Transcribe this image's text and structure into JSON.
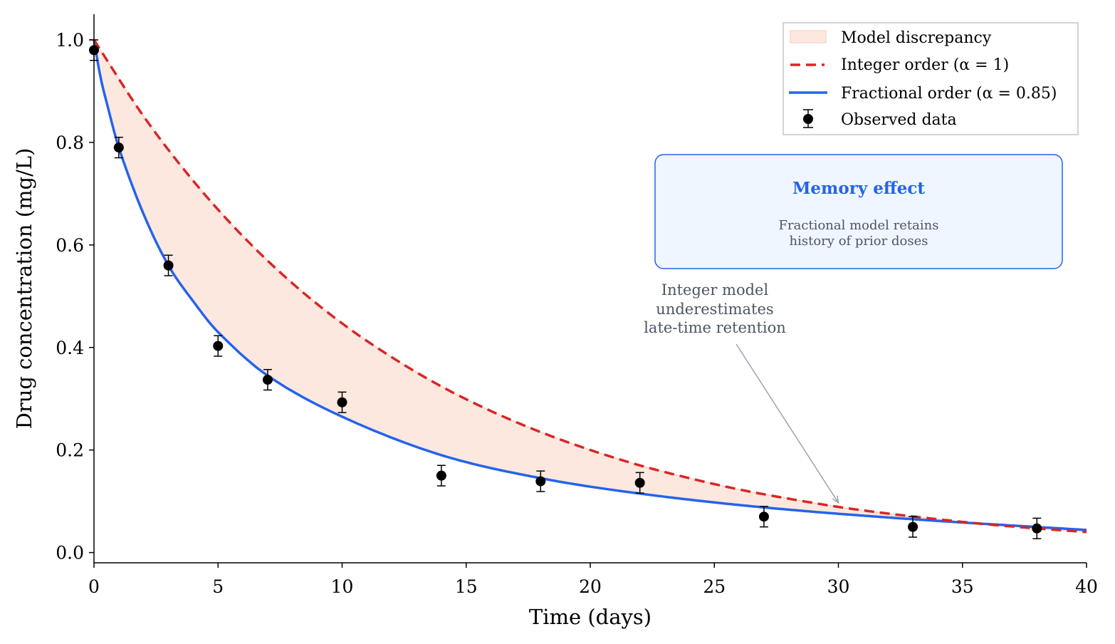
{
  "chart_data": {
    "type": "line",
    "title": "",
    "xlabel": "Time (days)",
    "ylabel": "Drug concentration (mg/L)",
    "xlim": [
      0,
      40
    ],
    "ylim": [
      -0.02,
      1.05
    ],
    "xticks": [
      0,
      5,
      10,
      15,
      20,
      25,
      30,
      35,
      40
    ],
    "xtick_labels": [
      "0",
      "5",
      "10",
      "15",
      "20",
      "25",
      "30",
      "35",
      "40"
    ],
    "yticks": [
      0.0,
      0.2,
      0.4,
      0.6,
      0.8,
      1.0
    ],
    "ytick_labels": [
      "0.0",
      "0.2",
      "0.4",
      "0.6",
      "0.8",
      "1.0"
    ],
    "grid": false,
    "legend_position": "top-right",
    "series": [
      {
        "name": "Integer order (α = 1)",
        "style": "dashed",
        "color": "#d62728",
        "x": [
          0,
          2,
          4,
          6,
          8,
          10,
          12,
          14,
          16,
          18,
          20,
          22,
          24,
          26,
          28,
          30,
          32,
          34,
          36,
          38,
          40
        ],
        "y": [
          1.0,
          0.851,
          0.725,
          0.617,
          0.525,
          0.447,
          0.381,
          0.324,
          0.276,
          0.235,
          0.2,
          0.17,
          0.145,
          0.123,
          0.105,
          0.089,
          0.076,
          0.065,
          0.055,
          0.047,
          0.04
        ]
      },
      {
        "name": "Fractional order (α = 0.85)",
        "style": "solid",
        "color": "#2563eb",
        "x": [
          0,
          0.25,
          0.5,
          1,
          2,
          3,
          4,
          5,
          7,
          10,
          14,
          18,
          22,
          27,
          33,
          40
        ],
        "y": [
          1.0,
          0.93,
          0.88,
          0.79,
          0.66,
          0.56,
          0.49,
          0.43,
          0.345,
          0.265,
          0.19,
          0.145,
          0.115,
          0.088,
          0.065,
          0.044
        ]
      },
      {
        "name": "Observed data",
        "type": "errorbar",
        "color": "#000000",
        "x": [
          0,
          1,
          3,
          5,
          7,
          10,
          14,
          18,
          22,
          27,
          33,
          38
        ],
        "y": [
          0.98,
          0.79,
          0.56,
          0.403,
          0.337,
          0.293,
          0.15,
          0.139,
          0.136,
          0.07,
          0.05,
          0.047
        ],
        "yerr": [
          0.02,
          0.02,
          0.02,
          0.02,
          0.02,
          0.02,
          0.02,
          0.02,
          0.02,
          0.02,
          0.02,
          0.02
        ]
      }
    ],
    "fill_between": {
      "name": "Model discrepancy",
      "color": "#fde8df",
      "edge": "#f7c9b5"
    },
    "legend": [
      "Model discrepancy",
      "Integer order (α = 1)",
      "Fractional order (α = 0.85)",
      "Observed data"
    ],
    "annotation": {
      "lines": [
        "Integer model",
        "underestimates",
        "late-time retention"
      ],
      "arrow_target": [
        30,
        0.097
      ],
      "text_anchor": [
        25,
        0.47
      ]
    },
    "textbox": {
      "title": "Memory effect",
      "lines": [
        "Fractional model retains",
        "history of prior doses"
      ],
      "border": "#2563eb",
      "fill": "#eff6ff"
    }
  }
}
